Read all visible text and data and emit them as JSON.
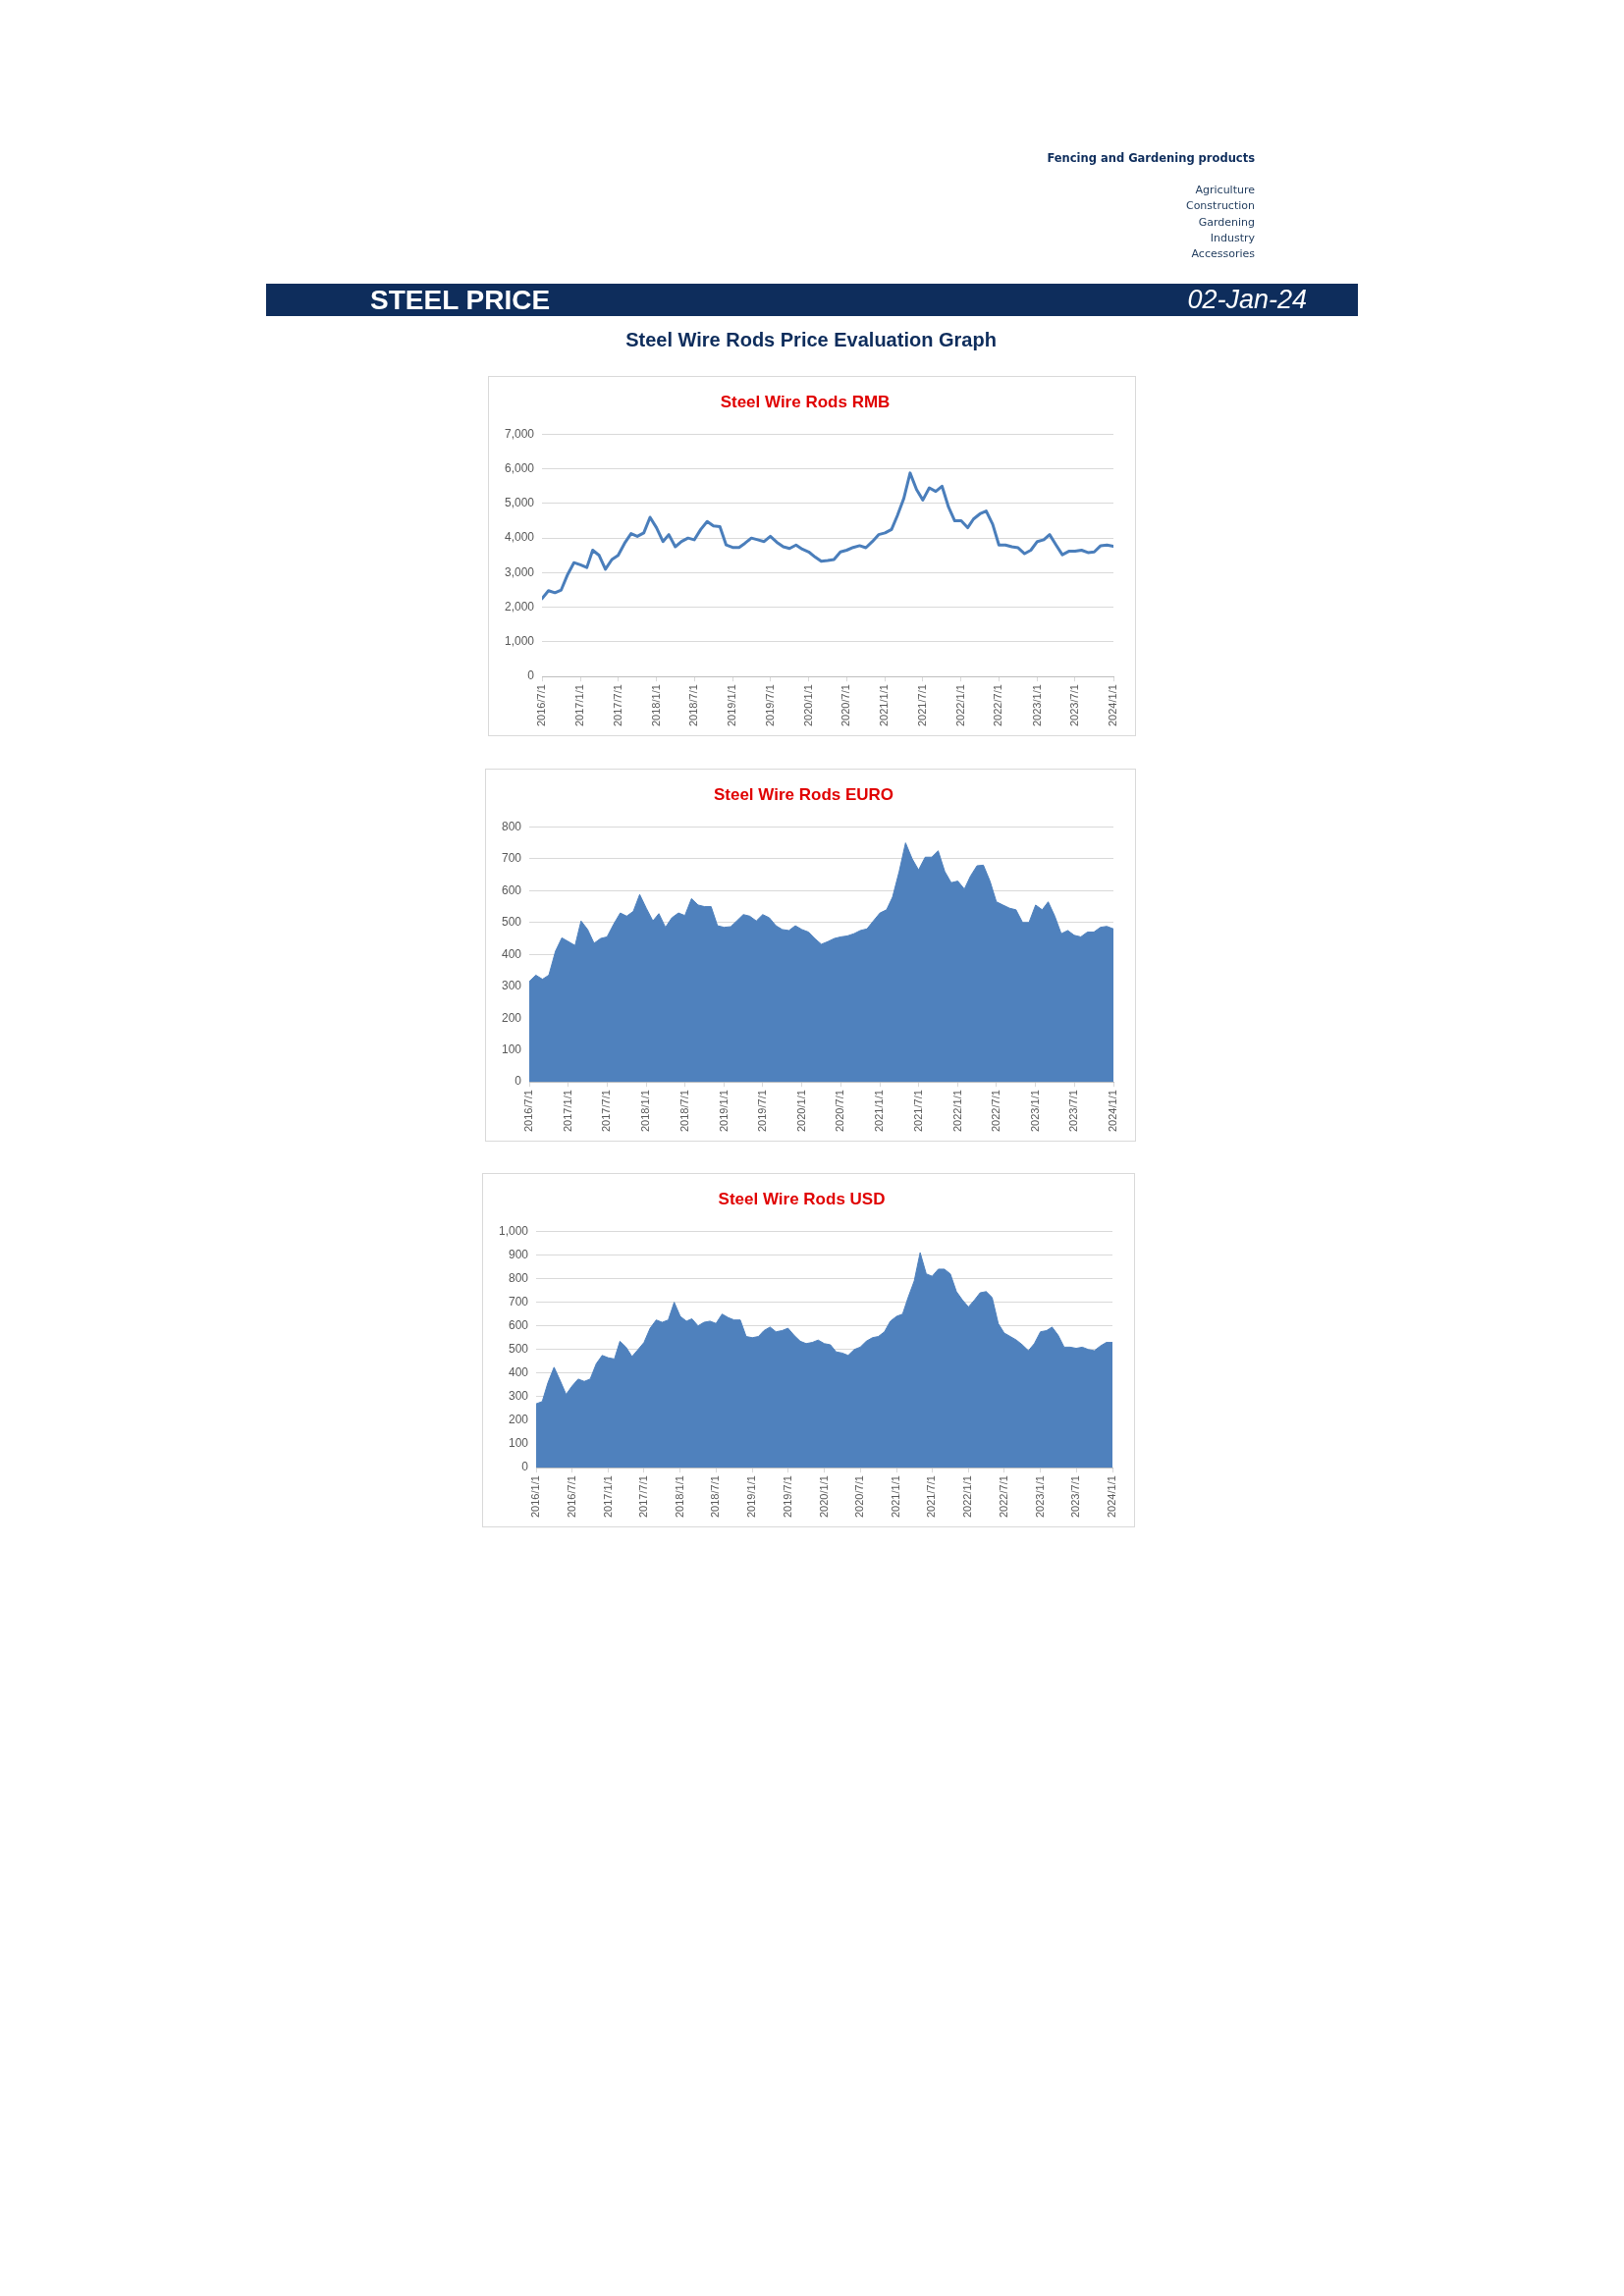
{
  "chart_data": [
    {
      "type": "other",
      "title": "STEEL PRICE",
      "subtitle": "Steel Wire Rods Price Evaluation Graph",
      "annotations": [
        "Fencing and Gardening products",
        "Agriculture",
        "Construction",
        "Gardening",
        "Industry",
        "Accessories",
        "02-Jan-24"
      ]
    },
    {
      "type": "line",
      "title": "Steel Wire Rods RMB",
      "color": "#4a7ebb",
      "grid": "y",
      "x": [
        "2016-07",
        "2016-08",
        "2016-09",
        "2016-10",
        "2016-11",
        "2016-12",
        "2017-01",
        "2017-02",
        "2017-03",
        "2017-04",
        "2017-05",
        "2017-06",
        "2017-07",
        "2017-08",
        "2017-09",
        "2017-10",
        "2017-11",
        "2017-12",
        "2018-01",
        "2018-02",
        "2018-03",
        "2018-04",
        "2018-05",
        "2018-06",
        "2018-07",
        "2018-08",
        "2018-09",
        "2018-10",
        "2018-11",
        "2018-12",
        "2019-01",
        "2019-02",
        "2019-03",
        "2019-04",
        "2019-05",
        "2019-06",
        "2019-07",
        "2019-08",
        "2019-09",
        "2019-10",
        "2019-11",
        "2019-12",
        "2020-01",
        "2020-02",
        "2020-03",
        "2020-04",
        "2020-05",
        "2020-06",
        "2020-07",
        "2020-08",
        "2020-09",
        "2020-10",
        "2020-11",
        "2020-12",
        "2021-01",
        "2021-02",
        "2021-03",
        "2021-04",
        "2021-05",
        "2021-06",
        "2021-07",
        "2021-08",
        "2021-09",
        "2021-10",
        "2021-11",
        "2021-12",
        "2022-01",
        "2022-02",
        "2022-03",
        "2022-04",
        "2022-05",
        "2022-06",
        "2022-07",
        "2022-08",
        "2022-09",
        "2022-10",
        "2022-11",
        "2022-12",
        "2023-01",
        "2023-02",
        "2023-03",
        "2023-04",
        "2023-05",
        "2023-06",
        "2023-07",
        "2023-08",
        "2023-09",
        "2023-10",
        "2023-11",
        "2023-12",
        "2024-01"
      ],
      "values": [
        2250,
        2480,
        2420,
        2500,
        2950,
        3290,
        3230,
        3150,
        3650,
        3500,
        3100,
        3380,
        3500,
        3850,
        4130,
        4050,
        4150,
        4600,
        4300,
        3900,
        4100,
        3750,
        3900,
        4000,
        3950,
        4250,
        4480,
        4350,
        4330,
        3800,
        3730,
        3730,
        3850,
        4000,
        3950,
        3900,
        4050,
        3880,
        3750,
        3700,
        3800,
        3680,
        3600,
        3450,
        3330,
        3350,
        3380,
        3600,
        3650,
        3730,
        3780,
        3720,
        3900,
        4100,
        4150,
        4250,
        4650,
        5150,
        5880,
        5400,
        5100,
        5450,
        5350,
        5500,
        4900,
        4500,
        4500,
        4300,
        4550,
        4700,
        4780,
        4400,
        3800,
        3800,
        3750,
        3720,
        3550,
        3650,
        3900,
        3950,
        4100,
        3800,
        3520,
        3620,
        3620,
        3650,
        3580,
        3600,
        3780,
        3800,
        3760
      ],
      "xlim": [
        "2016-07",
        "2024-01"
      ],
      "xticks": [
        {
          "value": "2016-07",
          "label": "2016/7/1"
        },
        {
          "value": "2017-01",
          "label": "2017/1/1"
        },
        {
          "value": "2017-07",
          "label": "2017/7/1"
        },
        {
          "value": "2018-01",
          "label": "2018/1/1"
        },
        {
          "value": "2018-07",
          "label": "2018/7/1"
        },
        {
          "value": "2019-01",
          "label": "2019/1/1"
        },
        {
          "value": "2019-07",
          "label": "2019/7/1"
        },
        {
          "value": "2020-01",
          "label": "2020/1/1"
        },
        {
          "value": "2020-07",
          "label": "2020/7/1"
        },
        {
          "value": "2021-01",
          "label": "2021/1/1"
        },
        {
          "value": "2021-07",
          "label": "2021/7/1"
        },
        {
          "value": "2022-01",
          "label": "2022/1/1"
        },
        {
          "value": "2022-07",
          "label": "2022/7/1"
        },
        {
          "value": "2023-01",
          "label": "2023/1/1"
        },
        {
          "value": "2023-07",
          "label": "2023/7/1"
        },
        {
          "value": "2024-01",
          "label": "2024/1/1"
        }
      ],
      "ylim": [
        0,
        7000
      ],
      "yticks": [
        0,
        {
          "value": 1000,
          "label": "1,000"
        },
        {
          "value": 2000,
          "label": "2,000"
        },
        {
          "value": 3000,
          "label": "3,000"
        },
        {
          "value": 4000,
          "label": "4,000"
        },
        {
          "value": 5000,
          "label": "5,000"
        },
        {
          "value": 6000,
          "label": "6,000"
        },
        {
          "value": 7000,
          "label": "7,000"
        }
      ]
    },
    {
      "type": "area",
      "title": "Steel Wire Rods EURO",
      "color": "#4f81bd",
      "grid": "y",
      "x": [
        "2016-07",
        "2016-08",
        "2016-09",
        "2016-10",
        "2016-11",
        "2016-12",
        "2017-01",
        "2017-02",
        "2017-03",
        "2017-04",
        "2017-05",
        "2017-06",
        "2017-07",
        "2017-08",
        "2017-09",
        "2017-10",
        "2017-11",
        "2017-12",
        "2018-01",
        "2018-02",
        "2018-03",
        "2018-04",
        "2018-05",
        "2018-06",
        "2018-07",
        "2018-08",
        "2018-09",
        "2018-10",
        "2018-11",
        "2018-12",
        "2019-01",
        "2019-02",
        "2019-03",
        "2019-04",
        "2019-05",
        "2019-06",
        "2019-07",
        "2019-08",
        "2019-09",
        "2019-10",
        "2019-11",
        "2019-12",
        "2020-01",
        "2020-02",
        "2020-03",
        "2020-04",
        "2020-05",
        "2020-06",
        "2020-07",
        "2020-08",
        "2020-09",
        "2020-10",
        "2020-11",
        "2020-12",
        "2021-01",
        "2021-02",
        "2021-03",
        "2021-04",
        "2021-05",
        "2021-06",
        "2021-07",
        "2021-08",
        "2021-09",
        "2021-10",
        "2021-11",
        "2021-12",
        "2022-01",
        "2022-02",
        "2022-03",
        "2022-04",
        "2022-05",
        "2022-06",
        "2022-07",
        "2022-08",
        "2022-09",
        "2022-10",
        "2022-11",
        "2022-12",
        "2023-01",
        "2023-02",
        "2023-03",
        "2023-04",
        "2023-05",
        "2023-06",
        "2023-07",
        "2023-08",
        "2023-09",
        "2023-10",
        "2023-11",
        "2023-12",
        "2024-01"
      ],
      "values": [
        315,
        335,
        322,
        335,
        410,
        452,
        440,
        428,
        505,
        478,
        435,
        450,
        455,
        495,
        530,
        520,
        535,
        588,
        545,
        505,
        528,
        485,
        515,
        530,
        522,
        575,
        555,
        550,
        550,
        490,
        485,
        487,
        505,
        525,
        520,
        505,
        525,
        515,
        490,
        478,
        475,
        490,
        478,
        470,
        450,
        432,
        440,
        450,
        455,
        458,
        465,
        475,
        480,
        505,
        530,
        540,
        580,
        660,
        750,
        700,
        665,
        705,
        705,
        725,
        660,
        625,
        630,
        605,
        645,
        678,
        680,
        630,
        565,
        555,
        545,
        540,
        500,
        500,
        555,
        540,
        565,
        520,
        465,
        475,
        460,
        455,
        470,
        470,
        485,
        488,
        480
      ],
      "xlim": [
        "2016-07",
        "2024-01"
      ],
      "xticks": [
        {
          "value": "2016-07",
          "label": "2016/7/1"
        },
        {
          "value": "2017-01",
          "label": "2017/1/1"
        },
        {
          "value": "2017-07",
          "label": "2017/7/1"
        },
        {
          "value": "2018-01",
          "label": "2018/1/1"
        },
        {
          "value": "2018-07",
          "label": "2018/7/1"
        },
        {
          "value": "2019-01",
          "label": "2019/1/1"
        },
        {
          "value": "2019-07",
          "label": "2019/7/1"
        },
        {
          "value": "2020-01",
          "label": "2020/1/1"
        },
        {
          "value": "2020-07",
          "label": "2020/7/1"
        },
        {
          "value": "2021-01",
          "label": "2021/1/1"
        },
        {
          "value": "2021-07",
          "label": "2021/7/1"
        },
        {
          "value": "2022-01",
          "label": "2022/1/1"
        },
        {
          "value": "2022-07",
          "label": "2022/7/1"
        },
        {
          "value": "2023-01",
          "label": "2023/1/1"
        },
        {
          "value": "2023-07",
          "label": "2023/7/1"
        },
        {
          "value": "2024-01",
          "label": "2024/1/1"
        }
      ],
      "ylim": [
        0,
        800
      ],
      "yticks": [
        0,
        100,
        200,
        300,
        400,
        500,
        600,
        700,
        800
      ]
    },
    {
      "type": "area",
      "title": "Steel Wire Rods USD",
      "color": "#4f81bd",
      "grid": "y",
      "x": [
        "2016-01",
        "2016-02",
        "2016-03",
        "2016-04",
        "2016-05",
        "2016-06",
        "2016-07",
        "2016-08",
        "2016-09",
        "2016-10",
        "2016-11",
        "2016-12",
        "2017-01",
        "2017-02",
        "2017-03",
        "2017-04",
        "2017-05",
        "2017-06",
        "2017-07",
        "2017-08",
        "2017-09",
        "2017-10",
        "2017-11",
        "2017-12",
        "2018-01",
        "2018-02",
        "2018-03",
        "2018-04",
        "2018-05",
        "2018-06",
        "2018-07",
        "2018-08",
        "2018-09",
        "2018-10",
        "2018-11",
        "2018-12",
        "2019-01",
        "2019-02",
        "2019-03",
        "2019-04",
        "2019-05",
        "2019-06",
        "2019-07",
        "2019-08",
        "2019-09",
        "2019-10",
        "2019-11",
        "2019-12",
        "2020-01",
        "2020-02",
        "2020-03",
        "2020-04",
        "2020-05",
        "2020-06",
        "2020-07",
        "2020-08",
        "2020-09",
        "2020-10",
        "2020-11",
        "2020-12",
        "2021-01",
        "2021-02",
        "2021-03",
        "2021-04",
        "2021-05",
        "2021-06",
        "2021-07",
        "2021-08",
        "2021-09",
        "2021-10",
        "2021-11",
        "2021-12",
        "2022-01",
        "2022-02",
        "2022-03",
        "2022-04",
        "2022-05",
        "2022-06",
        "2022-07",
        "2022-08",
        "2022-09",
        "2022-10",
        "2022-11",
        "2022-12",
        "2023-01",
        "2023-02",
        "2023-03",
        "2023-04",
        "2023-05",
        "2023-06",
        "2023-07",
        "2023-08",
        "2023-09",
        "2023-10",
        "2023-11",
        "2023-12",
        "2024-01"
      ],
      "values": [
        270,
        280,
        360,
        425,
        370,
        310,
        345,
        375,
        365,
        375,
        440,
        475,
        465,
        460,
        535,
        510,
        470,
        500,
        530,
        590,
        625,
        615,
        625,
        700,
        640,
        620,
        630,
        600,
        615,
        620,
        610,
        650,
        635,
        625,
        625,
        555,
        550,
        555,
        580,
        595,
        575,
        580,
        590,
        560,
        535,
        525,
        530,
        540,
        525,
        520,
        490,
        485,
        475,
        500,
        510,
        535,
        550,
        555,
        575,
        620,
        640,
        650,
        720,
        790,
        910,
        820,
        810,
        840,
        840,
        820,
        745,
        710,
        680,
        710,
        740,
        745,
        720,
        610,
        570,
        555,
        540,
        520,
        495,
        525,
        575,
        580,
        595,
        560,
        510,
        510,
        505,
        510,
        500,
        495,
        515,
        530,
        530
      ],
      "xlim": [
        "2016-01",
        "2024-01"
      ],
      "xticks": [
        {
          "value": "2016-01",
          "label": "2016/1/1"
        },
        {
          "value": "2016-07",
          "label": "2016/7/1"
        },
        {
          "value": "2017-01",
          "label": "2017/1/1"
        },
        {
          "value": "2017-07",
          "label": "2017/7/1"
        },
        {
          "value": "2018-01",
          "label": "2018/1/1"
        },
        {
          "value": "2018-07",
          "label": "2018/7/1"
        },
        {
          "value": "2019-01",
          "label": "2019/1/1"
        },
        {
          "value": "2019-07",
          "label": "2019/7/1"
        },
        {
          "value": "2020-01",
          "label": "2020/1/1"
        },
        {
          "value": "2020-07",
          "label": "2020/7/1"
        },
        {
          "value": "2021-01",
          "label": "2021/1/1"
        },
        {
          "value": "2021-07",
          "label": "2021/7/1"
        },
        {
          "value": "2022-01",
          "label": "2022/1/1"
        },
        {
          "value": "2022-07",
          "label": "2022/7/1"
        },
        {
          "value": "2023-01",
          "label": "2023/1/1"
        },
        {
          "value": "2023-07",
          "label": "2023/7/1"
        },
        {
          "value": "2024-01",
          "label": "2024/1/1"
        }
      ],
      "ylim": [
        0,
        1000
      ],
      "yticks": [
        0,
        100,
        200,
        300,
        400,
        500,
        600,
        700,
        800,
        900,
        {
          "value": 1000,
          "label": "1,000"
        }
      ]
    }
  ]
}
